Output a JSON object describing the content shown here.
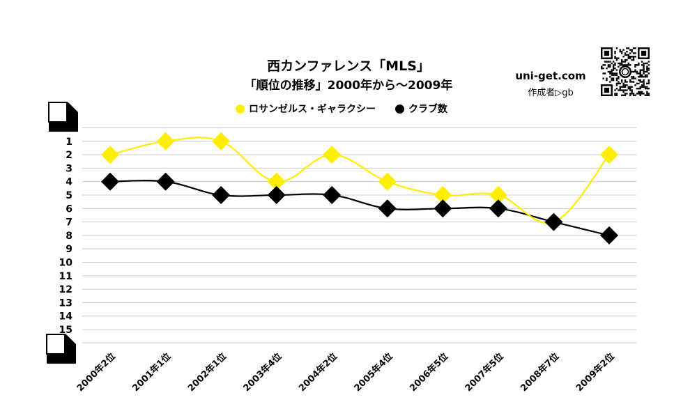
{
  "title": "西カンファレンス「MLS」",
  "subtitle": "「順位の推移」2000年から～2009年",
  "site": "uni-get.com",
  "author": "作成者▷gb",
  "colors": {
    "galaxy": "#ffee00",
    "clubs": "#000000",
    "grid": "#cccccc"
  },
  "icons": {
    "qr": "qr-code-icon",
    "corner_top": "page-corner-icon",
    "corner_bottom": "page-corner-icon"
  },
  "chart_data": {
    "type": "line",
    "categories": [
      "2000年2位",
      "2001年1位",
      "2002年1位",
      "2003年4位",
      "2004年2位",
      "2005年4位",
      "2006年5位",
      "2007年5位",
      "2008年7位",
      "2009年2位"
    ],
    "series": [
      {
        "name": "ロサンゼルス・ギャラクシー",
        "values": [
          2,
          1,
          1,
          4,
          2,
          4,
          5,
          5,
          7,
          2
        ],
        "color": "#ffee00",
        "marker": "diamond"
      },
      {
        "name": "クラブ数",
        "values": [
          4,
          4,
          5,
          5,
          5,
          6,
          6,
          6,
          7,
          8
        ],
        "color": "#000000",
        "marker": "diamond"
      }
    ],
    "y_ticks": [
      "1",
      "2",
      "3",
      "4",
      "5",
      "6",
      "7",
      "8",
      "9",
      "10",
      "11",
      "12",
      "13",
      "14",
      "15"
    ],
    "ylim": [
      0,
      16
    ],
    "y_inverted": true,
    "grid": true,
    "legend_position": "top"
  }
}
